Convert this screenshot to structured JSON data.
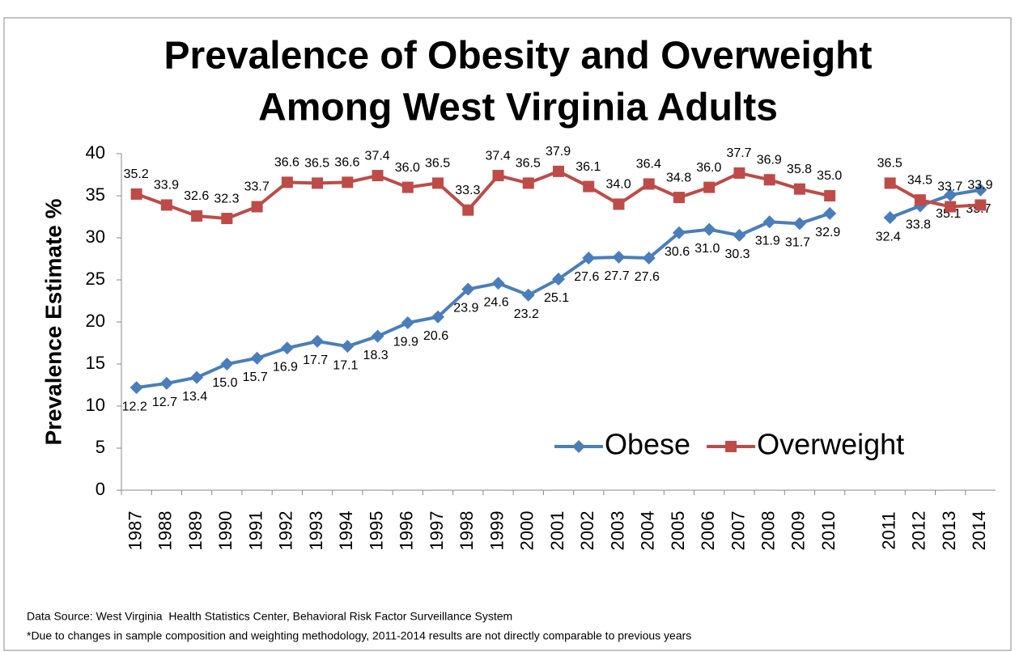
{
  "chart_data": {
    "type": "line",
    "title": [
      "Prevalence of Obesity and Overweight",
      "Among West Virginia Adults"
    ],
    "y_label": "Prevalence Estimate %",
    "categories": [
      "1987",
      "1988",
      "1989",
      "1990",
      "1991",
      "1992",
      "1993",
      "1994",
      "1995",
      "1996",
      "1997",
      "1998",
      "1999",
      "2000",
      "2001",
      "2002",
      "2003",
      "2004",
      "2005",
      "2006",
      "2007",
      "2008",
      "2009",
      "2010",
      null,
      "2011",
      "2012",
      "2013",
      "2014"
    ],
    "series": [
      {
        "name": "Obese",
        "color": "#4a7ebb",
        "marker": "diamond",
        "values": [
          12.2,
          12.7,
          13.4,
          15.0,
          15.7,
          16.9,
          17.7,
          17.1,
          18.3,
          19.9,
          20.6,
          23.9,
          24.6,
          23.2,
          25.1,
          27.6,
          27.7,
          27.6,
          30.6,
          31.0,
          30.3,
          31.9,
          31.7,
          32.9,
          null,
          32.4,
          33.8,
          35.1,
          35.7
        ],
        "value_labels": [
          "12.2",
          "12.7",
          "13.4",
          "15.0",
          "15.7",
          "16.9",
          "17.7",
          "17.1",
          "18.3",
          "19.9",
          "20.6",
          "23.9",
          "24.6",
          "23.2",
          "25.1",
          "27.6",
          "27.7",
          "27.6",
          "30.6",
          "31.0",
          "30.3",
          "31.9",
          "31.7",
          "32.9",
          null,
          "32.4",
          "33.8",
          "35.1",
          "35.7"
        ]
      },
      {
        "name": "Overweight",
        "color": "#be4b48",
        "marker": "square",
        "values": [
          35.2,
          33.9,
          32.6,
          32.3,
          33.7,
          36.6,
          36.5,
          36.6,
          37.4,
          36.0,
          36.5,
          33.3,
          37.4,
          36.5,
          37.9,
          36.1,
          34.0,
          36.4,
          34.8,
          36.0,
          37.7,
          36.9,
          35.8,
          35.0,
          null,
          36.5,
          34.5,
          33.7,
          33.9
        ],
        "value_labels": [
          "35.2",
          "33.9",
          "32.6",
          "32.3",
          "33.7",
          "36.6",
          "36.5",
          "36.6",
          "37.4",
          "36.0",
          "36.5",
          "33.3",
          "37.4",
          "36.5",
          "37.9",
          "36.1",
          "34.0",
          "36.4",
          "34.8",
          "36.0",
          "37.7",
          "36.9",
          "35.8",
          "35.0",
          null,
          "36.5",
          "34.5",
          "33.7",
          "33.9"
        ]
      }
    ],
    "ylim": [
      0,
      40
    ],
    "yticks": [
      0,
      5,
      10,
      15,
      20,
      25,
      30,
      35,
      40
    ],
    "legend": "lower right",
    "notes": [
      "Data Source: West Virginia  Health Statistics Center, Behavioral Risk Factor Surveillance System",
      "*Due to changes in sample composition and weighting methodology, 2011-2014 results are not directly comparable to previous years"
    ]
  }
}
